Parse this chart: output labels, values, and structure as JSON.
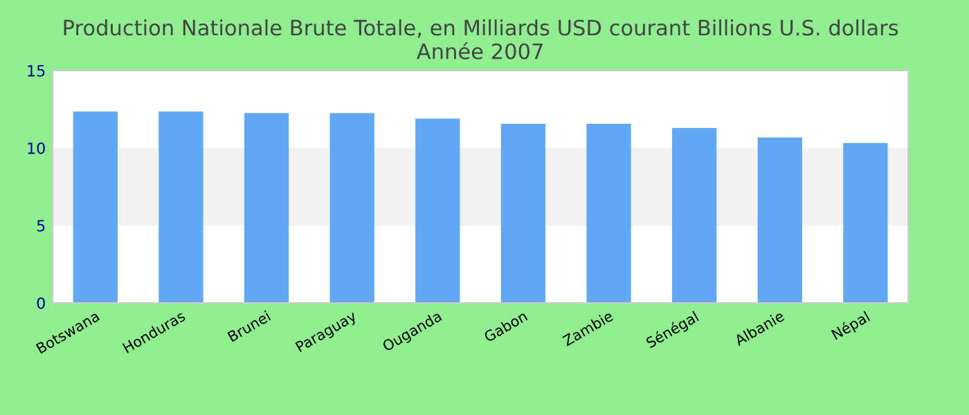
{
  "chart_data": {
    "type": "bar",
    "title": "Production Nationale Brute Totale, en Milliards USD courant Billions U.S. dollars\nAnnée 2007",
    "categories": [
      "Botswana",
      "Honduras",
      "Brunei",
      "Paraguay",
      "Ouganda",
      "Gabon",
      "Zambie",
      "Sénégal",
      "Albanie",
      "Népal"
    ],
    "values": [
      12.35,
      12.35,
      12.26,
      12.26,
      11.9,
      11.56,
      11.56,
      11.29,
      10.68,
      10.32
    ],
    "color": "#60a8f4",
    "ylim": [
      0,
      15
    ],
    "yticks": [
      0,
      5,
      10,
      15
    ],
    "bands": [
      {
        "axis": "y",
        "from": 5,
        "to": 10,
        "color": "#f2f2f2"
      }
    ],
    "grid": false
  }
}
